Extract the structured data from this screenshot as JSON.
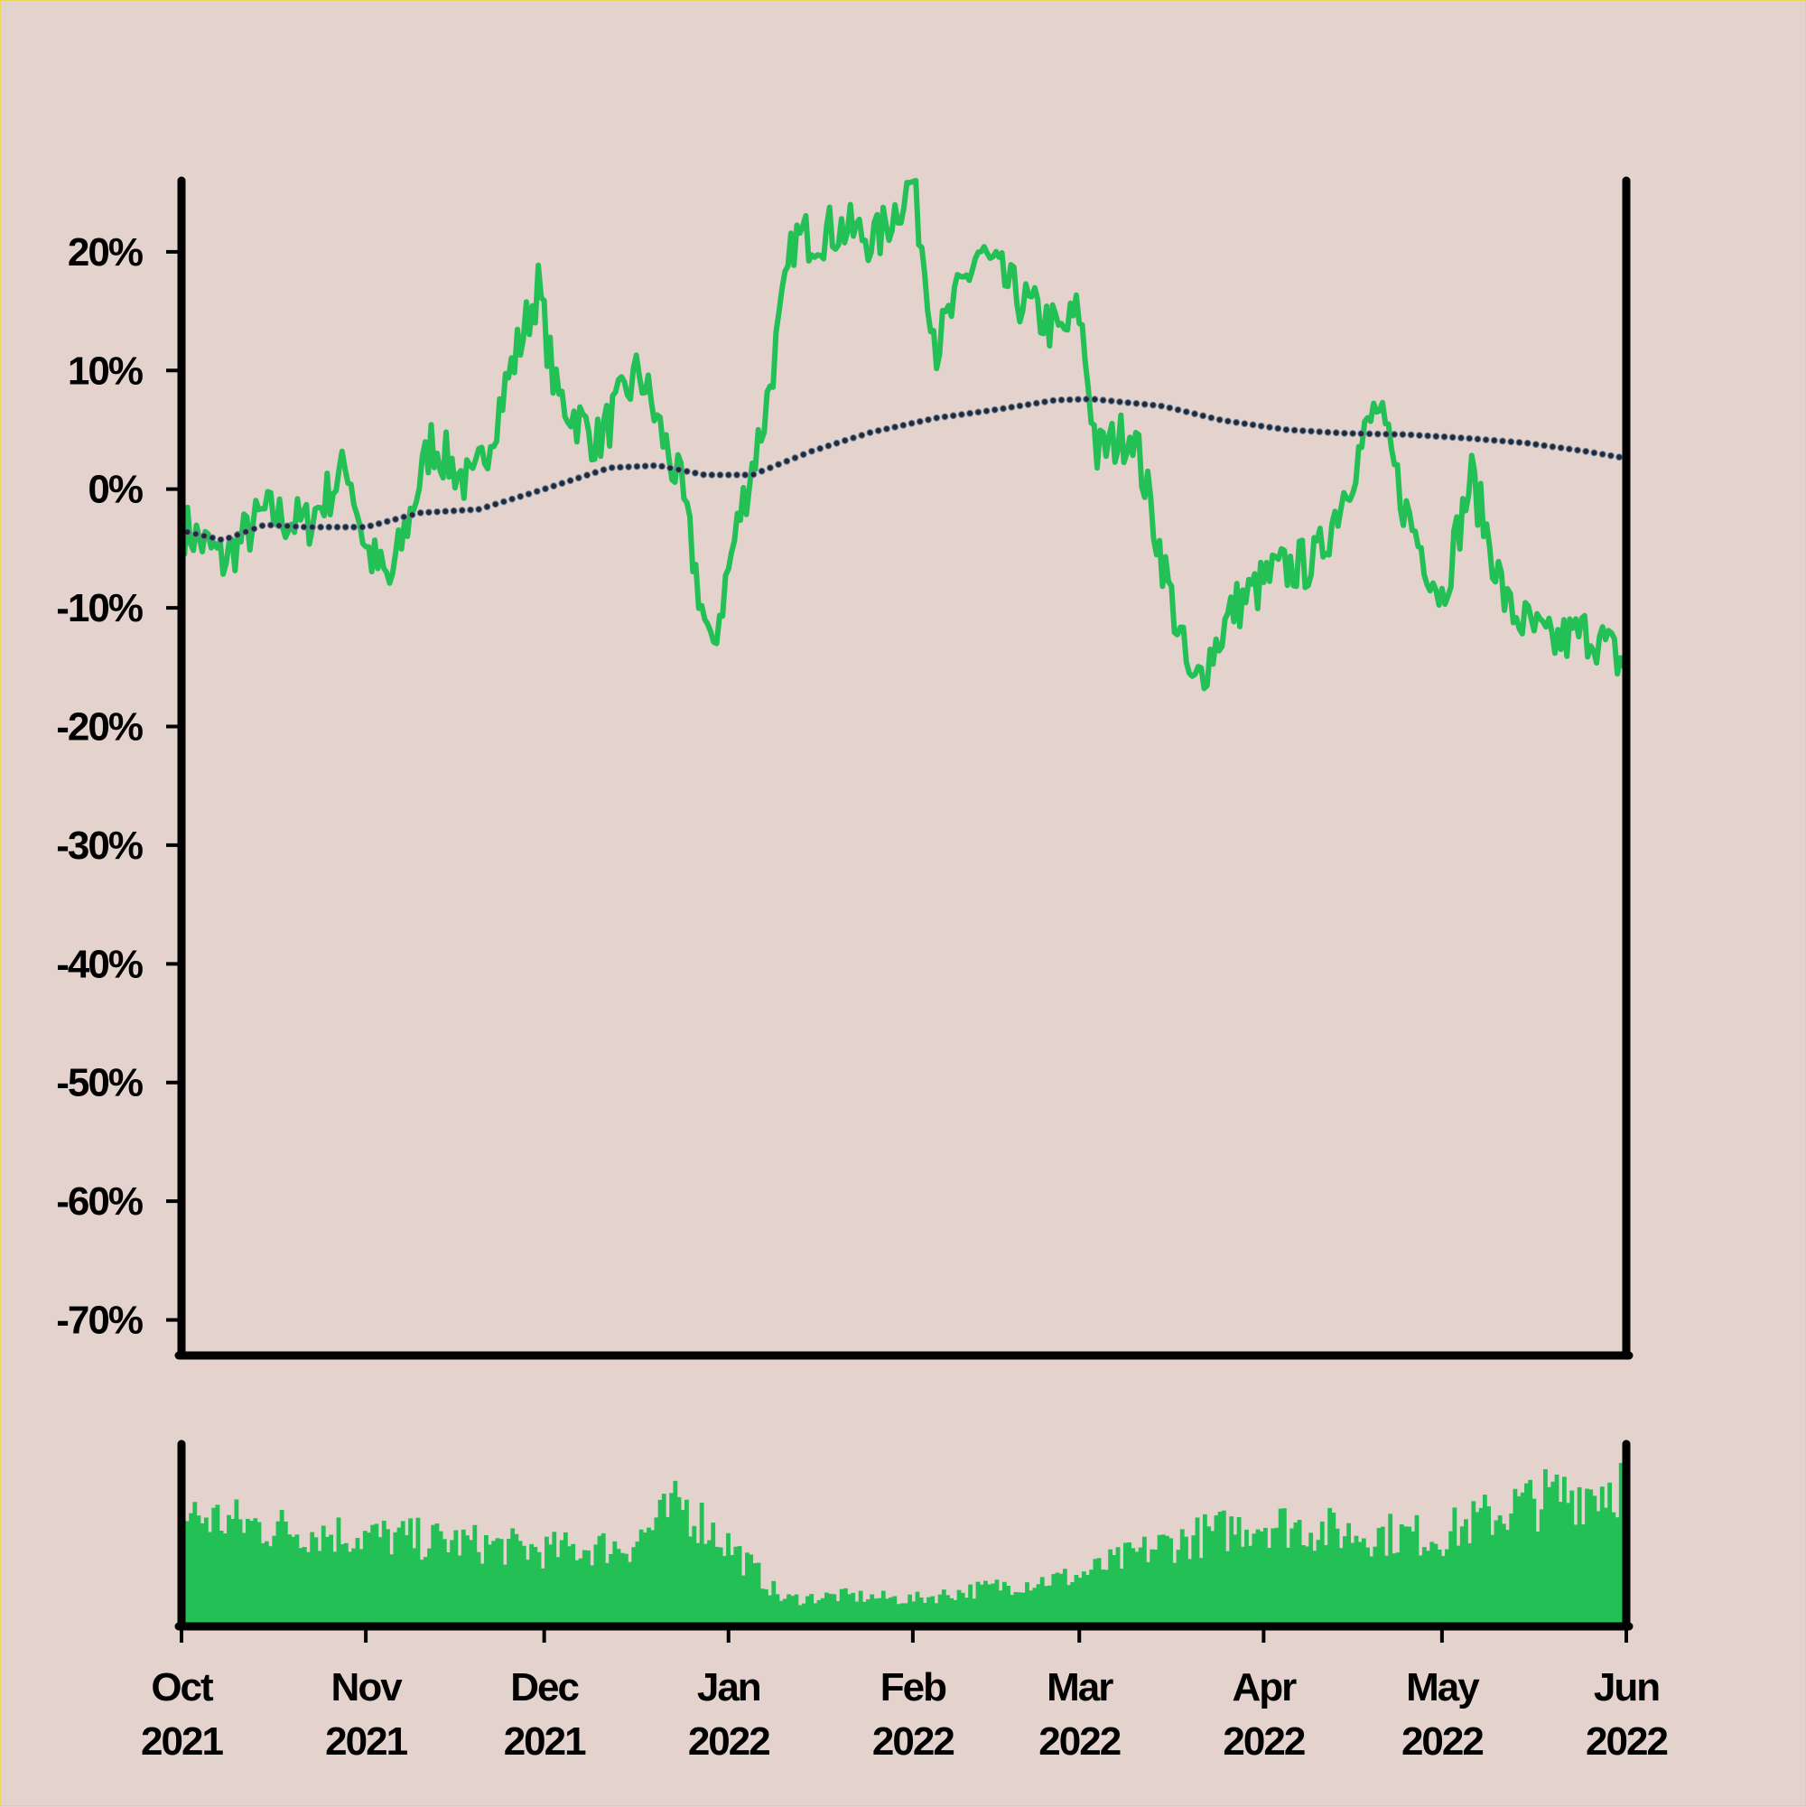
{
  "chart_data": [
    {
      "type": "line",
      "title": "",
      "xlabel": "",
      "ylabel": "",
      "xlim": [
        "2021-10-01",
        "2022-06-01"
      ],
      "ylim": [
        -73,
        26
      ],
      "y_ticks": [
        20,
        10,
        0,
        -10,
        -20,
        -30,
        -40,
        -50,
        -60,
        -70
      ],
      "y_tick_labels": [
        "20%",
        "10%",
        "0%",
        "-10%",
        "-20%",
        "-30%",
        "-40%",
        "-50%",
        "-60%",
        "-70%"
      ],
      "grid": false,
      "colors": {
        "line": "#22c055",
        "moving_average": "#1f2a3a",
        "axes": "#000000",
        "background": "#e3d3cc"
      },
      "series": [
        {
          "style": "solid",
          "x": [
            "2021-10-01",
            "2021-10-08",
            "2021-10-15",
            "2021-10-22",
            "2021-10-29",
            "2021-11-01",
            "2021-11-05",
            "2021-11-12",
            "2021-11-19",
            "2021-11-26",
            "2021-11-30",
            "2021-12-03",
            "2021-12-10",
            "2021-12-17",
            "2021-12-24",
            "2021-12-29",
            "2022-01-03",
            "2022-01-07",
            "2022-01-12",
            "2022-01-20",
            "2022-01-26",
            "2022-02-01",
            "2022-02-05",
            "2022-02-12",
            "2022-02-19",
            "2022-02-26",
            "2022-03-01",
            "2022-03-04",
            "2022-03-10",
            "2022-03-15",
            "2022-03-20",
            "2022-03-27",
            "2022-04-03",
            "2022-04-10",
            "2022-04-17",
            "2022-04-20",
            "2022-04-25",
            "2022-05-01",
            "2022-05-06",
            "2022-05-12",
            "2022-05-19",
            "2022-05-26",
            "2022-06-01"
          ],
          "y": [
            -3,
            -6,
            -2,
            -3,
            2,
            -5,
            -8,
            4,
            0,
            11,
            17,
            8,
            4,
            10,
            0,
            -14,
            -2,
            6,
            21,
            22,
            21,
            26,
            12,
            20,
            16,
            13,
            15,
            3,
            5,
            -6,
            -17,
            -10,
            -7,
            -6,
            3,
            7,
            -2,
            -9,
            1,
            -10,
            -13,
            -12,
            -15
          ]
        },
        {
          "style": "dotted",
          "x": [
            "2021-10-01",
            "2021-10-08",
            "2021-10-15",
            "2021-10-22",
            "2021-11-01",
            "2021-11-10",
            "2021-11-20",
            "2021-12-01",
            "2021-12-12",
            "2021-12-20",
            "2021-12-28",
            "2022-01-05",
            "2022-01-15",
            "2022-01-25",
            "2022-02-05",
            "2022-02-15",
            "2022-02-25",
            "2022-03-03",
            "2022-03-15",
            "2022-03-25",
            "2022-04-05",
            "2022-04-15",
            "2022-04-25",
            "2022-05-05",
            "2022-05-15",
            "2022-05-25",
            "2022-06-01"
          ],
          "y": [
            -3.5,
            -4.3,
            -3,
            -3.2,
            -3.2,
            -2,
            -1.7,
            0,
            1.8,
            2,
            1.2,
            1.2,
            3.2,
            4.8,
            6,
            6.7,
            7.5,
            7.6,
            7,
            5.8,
            5,
            4.7,
            4.6,
            4.3,
            3.9,
            3.2,
            2.6
          ]
        }
      ]
    },
    {
      "type": "bar",
      "title": "",
      "xlabel": "",
      "ylabel": "",
      "grid": false,
      "x_range": [
        "2021-10-01",
        "2022-06-01"
      ],
      "x_ticks": [
        "2021-10-01",
        "2021-11-01",
        "2021-12-01",
        "2022-01-01",
        "2022-02-01",
        "2022-03-01",
        "2022-04-01",
        "2022-05-01",
        "2022-06-01"
      ],
      "x_tick_labels": [
        {
          "month": "Oct",
          "year": "2021"
        },
        {
          "month": "Nov",
          "year": "2021"
        },
        {
          "month": "Dec",
          "year": "2021"
        },
        {
          "month": "Jan",
          "year": "2022"
        },
        {
          "month": "Feb",
          "year": "2022"
        },
        {
          "month": "Mar",
          "year": "2022"
        },
        {
          "month": "Apr",
          "year": "2022"
        },
        {
          "month": "May",
          "year": "2022"
        },
        {
          "month": "Jun",
          "year": "2022"
        }
      ],
      "volume_profile": {
        "x": [
          "2021-10-01",
          "2021-10-15",
          "2021-11-01",
          "2021-11-15",
          "2021-12-01",
          "2021-12-15",
          "2021-12-24",
          "2022-01-01",
          "2022-01-10",
          "2022-01-20",
          "2022-02-01",
          "2022-02-15",
          "2022-03-01",
          "2022-03-15",
          "2022-04-01",
          "2022-04-15",
          "2022-05-01",
          "2022-05-15",
          "2022-06-01"
        ],
        "level": [
          0.62,
          0.55,
          0.5,
          0.47,
          0.42,
          0.45,
          0.68,
          0.45,
          0.15,
          0.17,
          0.15,
          0.22,
          0.28,
          0.45,
          0.58,
          0.52,
          0.5,
          0.68,
          0.8
        ]
      },
      "colors": {
        "bar": "#22c055"
      }
    }
  ]
}
